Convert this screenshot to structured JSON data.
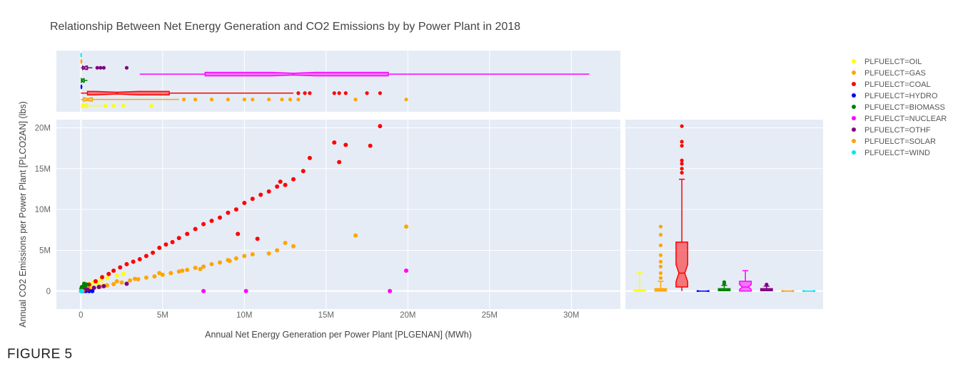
{
  "caption": "FIGURE 5",
  "chart_data": {
    "type": "scatter",
    "title": "Relationship Between Net Energy Generation and CO2 Emissions by by Power Plant in 2018",
    "xlabel": "Annual Net Energy Generation per Power Plant [PLGENAN] (MWh)",
    "ylabel": "Annual CO2 Emissions per Power Plant [PLCO2AN] (lbs)",
    "xlim": [
      -1500000,
      33000000
    ],
    "ylim": [
      -2200000,
      21000000
    ],
    "x_ticks": [
      {
        "v": 0,
        "label": "0"
      },
      {
        "v": 5000000,
        "label": "5M"
      },
      {
        "v": 10000000,
        "label": "10M"
      },
      {
        "v": 15000000,
        "label": "15M"
      },
      {
        "v": 20000000,
        "label": "20M"
      },
      {
        "v": 25000000,
        "label": "25M"
      },
      {
        "v": 30000000,
        "label": "30M"
      }
    ],
    "y_ticks": [
      {
        "v": 0,
        "label": "0"
      },
      {
        "v": 5000000,
        "label": "5M"
      },
      {
        "v": 10000000,
        "label": "10M"
      },
      {
        "v": 15000000,
        "label": "15M"
      },
      {
        "v": 20000000,
        "label": "20M"
      }
    ],
    "grid": true,
    "legend_position": "right",
    "marginal_x": "box",
    "marginal_y": "box",
    "series": [
      {
        "name": "PLFUELCT=OIL",
        "color": "#ffff00",
        "points": [
          [
            0,
            0
          ],
          [
            50000,
            150000
          ],
          [
            120000,
            300000
          ],
          [
            200000,
            500000
          ],
          [
            350000,
            750000
          ],
          [
            500000,
            900000
          ],
          [
            800000,
            1100000
          ],
          [
            1200000,
            1400000
          ],
          [
            1600000,
            1600000
          ],
          [
            2200000,
            1900000
          ],
          [
            2600000,
            2100000
          ],
          [
            150000,
            80000
          ],
          [
            300000,
            420000
          ],
          [
            600000,
            650000
          ],
          [
            1000000,
            1000000
          ],
          [
            1400000,
            800000
          ]
        ],
        "box_x": {
          "min": 0,
          "q1": 50000,
          "median": 150000,
          "q3": 400000,
          "max": 1300000
        },
        "box_x_outliers": [
          1500000,
          2000000,
          2600000,
          4300000
        ],
        "box_y": {
          "min": 0,
          "q1": 0,
          "median": 50000,
          "q3": 150000,
          "max": 2300000
        }
      },
      {
        "name": "PLFUELCT=GAS",
        "color": "#ffa500",
        "points": [
          [
            100000,
            50000
          ],
          [
            300000,
            150000
          ],
          [
            500000,
            250000
          ],
          [
            800000,
            400000
          ],
          [
            1200000,
            550000
          ],
          [
            1600000,
            700000
          ],
          [
            2000000,
            850000
          ],
          [
            2500000,
            1050000
          ],
          [
            3000000,
            1300000
          ],
          [
            3500000,
            1450000
          ],
          [
            4000000,
            1650000
          ],
          [
            4500000,
            1800000
          ],
          [
            5000000,
            2000000
          ],
          [
            5500000,
            2200000
          ],
          [
            6000000,
            2400000
          ],
          [
            6500000,
            2600000
          ],
          [
            7000000,
            2850000
          ],
          [
            7500000,
            3000000
          ],
          [
            8000000,
            3300000
          ],
          [
            8500000,
            3500000
          ],
          [
            9000000,
            3800000
          ],
          [
            9500000,
            4000000
          ],
          [
            10000000,
            4300000
          ],
          [
            10500000,
            4500000
          ],
          [
            11500000,
            4600000
          ],
          [
            12000000,
            5000000
          ],
          [
            12500000,
            5900000
          ],
          [
            13000000,
            5500000
          ],
          [
            16800000,
            6800000
          ],
          [
            19900000,
            7900000
          ],
          [
            2200000,
            1200000
          ],
          [
            3300000,
            1500000
          ],
          [
            4800000,
            2200000
          ],
          [
            6200000,
            2500000
          ],
          [
            7300000,
            2700000
          ],
          [
            9100000,
            3700000
          ]
        ],
        "box_x": {
          "min": 0,
          "q1": 150000,
          "median": 400000,
          "q3": 700000,
          "max": 6000000
        },
        "box_x_outliers": [
          6300000,
          7000000,
          8000000,
          9000000,
          10000000,
          10500000,
          11500000,
          12300000,
          12800000,
          13300000,
          16800000,
          19900000
        ],
        "box_y": {
          "min": 0,
          "q1": 0,
          "median": 150000,
          "q3": 300000,
          "max": 1200000
        },
        "box_y_outliers": [
          1600000,
          2200000,
          3000000,
          3600000,
          4400000,
          5600000,
          6900000,
          7900000
        ]
      },
      {
        "name": "PLFUELCT=COAL",
        "color": "#ff0000",
        "points": [
          [
            200000,
            300000
          ],
          [
            500000,
            800000
          ],
          [
            900000,
            1200000
          ],
          [
            1300000,
            1700000
          ],
          [
            1700000,
            2100000
          ],
          [
            2000000,
            2500000
          ],
          [
            2400000,
            2900000
          ],
          [
            2800000,
            3300000
          ],
          [
            3200000,
            3600000
          ],
          [
            3600000,
            3900000
          ],
          [
            4000000,
            4300000
          ],
          [
            4400000,
            4700000
          ],
          [
            4800000,
            5300000
          ],
          [
            5200000,
            5700000
          ],
          [
            5600000,
            6000000
          ],
          [
            6000000,
            6500000
          ],
          [
            6500000,
            7000000
          ],
          [
            7000000,
            7600000
          ],
          [
            7500000,
            8200000
          ],
          [
            8000000,
            8600000
          ],
          [
            8500000,
            9000000
          ],
          [
            9000000,
            9600000
          ],
          [
            9500000,
            10000000
          ],
          [
            10000000,
            10800000
          ],
          [
            10500000,
            11300000
          ],
          [
            11000000,
            11800000
          ],
          [
            11500000,
            12200000
          ],
          [
            12000000,
            12800000
          ],
          [
            12500000,
            13000000
          ],
          [
            13000000,
            13700000
          ],
          [
            14000000,
            16300000
          ],
          [
            15500000,
            18200000
          ],
          [
            15800000,
            15800000
          ],
          [
            16200000,
            17900000
          ],
          [
            17700000,
            17800000
          ],
          [
            18300000,
            20200000
          ],
          [
            13600000,
            14700000
          ],
          [
            9600000,
            7000000
          ],
          [
            10800000,
            6400000
          ],
          [
            12200000,
            13400000
          ]
        ],
        "box_x": {
          "min": 0,
          "q1": 400000,
          "median": 2200000,
          "q3": 5400000,
          "max": 13000000
        },
        "box_x_outliers": [
          13300000,
          13700000,
          14000000,
          15500000,
          15800000,
          16200000,
          17500000,
          18300000
        ],
        "box_y": {
          "min": 0,
          "q1": 500000,
          "median": 2200000,
          "q3": 6000000,
          "max": 13700000
        },
        "box_y_outliers": [
          14500000,
          15000000,
          15600000,
          16000000,
          17800000,
          18300000,
          20200000
        ]
      },
      {
        "name": "PLFUELCT=HYDRO",
        "color": "#0000ff",
        "points": [
          [
            20000,
            0
          ],
          [
            80000,
            0
          ],
          [
            150000,
            0
          ],
          [
            300000,
            0
          ],
          [
            500000,
            0
          ],
          [
            700000,
            0
          ]
        ],
        "box_x": {
          "min": 0,
          "q1": 10000,
          "median": 20000,
          "q3": 40000,
          "max": 100000
        },
        "box_y": {
          "min": 0,
          "q1": 0,
          "median": 0,
          "q3": 0,
          "max": 0
        }
      },
      {
        "name": "PLFUELCT=BIOMASS",
        "color": "#008000",
        "points": [
          [
            30000,
            300000
          ],
          [
            60000,
            500000
          ],
          [
            100000,
            200000
          ],
          [
            150000,
            400000
          ],
          [
            250000,
            600000
          ],
          [
            350000,
            800000
          ],
          [
            80000,
            100000
          ],
          [
            200000,
            900000
          ]
        ],
        "box_x": {
          "min": 0,
          "q1": 30000,
          "median": 80000,
          "q3": 200000,
          "max": 400000
        },
        "box_y": {
          "min": 0,
          "q1": 50000,
          "median": 150000,
          "q3": 300000,
          "max": 700000
        },
        "box_y_outliers": [
          900000,
          1100000
        ]
      },
      {
        "name": "PLFUELCT=NUCLEAR",
        "color": "#ff00ff",
        "points": [
          [
            7500000,
            0
          ],
          [
            10100000,
            0
          ],
          [
            18900000,
            0
          ],
          [
            19900000,
            2500000
          ]
        ],
        "box_x": {
          "min": 3600000,
          "q1": 7600000,
          "median": 13000000,
          "q3": 18800000,
          "max": 31100000
        },
        "box_y": {
          "min": 0,
          "q1": 0,
          "median": 500000,
          "q3": 1200000,
          "max": 2500000
        }
      },
      {
        "name": "PLFUELCT=OTHF",
        "color": "#800080",
        "points": [
          [
            200000,
            100000
          ],
          [
            400000,
            200000
          ],
          [
            800000,
            400000
          ],
          [
            1100000,
            500000
          ],
          [
            1400000,
            600000
          ],
          [
            2800000,
            900000
          ]
        ],
        "box_x": {
          "min": 0,
          "q1": 100000,
          "median": 200000,
          "q3": 400000,
          "max": 700000
        },
        "box_x_outliers": [
          1000000,
          1200000,
          1400000,
          2800000
        ],
        "box_y": {
          "min": 0,
          "q1": 50000,
          "median": 150000,
          "q3": 300000,
          "max": 600000
        },
        "box_y_outliers": [
          800000
        ]
      },
      {
        "name": "PLFUELCT=SOLAR",
        "color": "#ff9f00",
        "points": [
          [
            10000,
            0
          ],
          [
            30000,
            0
          ],
          [
            60000,
            0
          ],
          [
            100000,
            0
          ]
        ],
        "box_x": {
          "min": 0,
          "q1": 5000,
          "median": 15000,
          "q3": 40000,
          "max": 100000
        },
        "box_y": {
          "min": 0,
          "q1": 0,
          "median": 0,
          "q3": 0,
          "max": 0
        }
      },
      {
        "name": "PLFUELCT=WIND",
        "color": "#00e5ee",
        "points": [
          [
            5000,
            0
          ],
          [
            15000,
            0
          ],
          [
            40000,
            0
          ]
        ],
        "box_x": {
          "min": 0,
          "q1": 5000,
          "median": 10000,
          "q3": 20000,
          "max": 40000
        },
        "box_y": {
          "min": 0,
          "q1": 0,
          "median": 0,
          "q3": 0,
          "max": 0
        }
      }
    ]
  }
}
